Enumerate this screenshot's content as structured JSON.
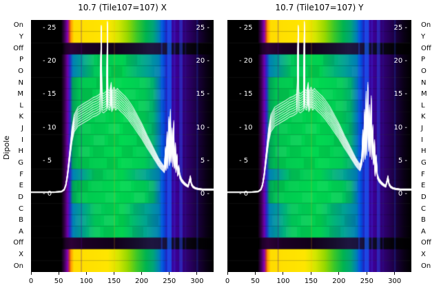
{
  "chart_data": {
    "type": "heatmap+line",
    "ylabel": "Dipole",
    "panels": [
      {
        "title": "10.7 (Tile107=107) X",
        "cluster_scale": 1.0
      },
      {
        "title": "10.7 (Tile107=107) Y",
        "cluster_scale": 1.35
      }
    ],
    "x_range": [
      0,
      330
    ],
    "x_ticks": [
      0,
      50,
      100,
      150,
      200,
      250,
      300
    ],
    "y_value_ticks": [
      25,
      20,
      15,
      10,
      5,
      0
    ],
    "row_labels": [
      "On",
      "Y",
      "Off",
      "P",
      "O",
      "N",
      "M",
      "L",
      "K",
      "J",
      "I",
      "H",
      "G",
      "F",
      "E",
      "D",
      "C",
      "B",
      "A",
      "Off",
      "X",
      "On"
    ],
    "row_types": [
      "hot",
      "hot",
      "off",
      "midB",
      "midB",
      "midA",
      "midA",
      "midA",
      "midA",
      "midA",
      "midA",
      "midA",
      "midA",
      "midB",
      "midA",
      "midA",
      "midB",
      "midB",
      "midB",
      "off",
      "hot",
      "hot"
    ],
    "palettes": {
      "hot": [
        [
          0,
          "#000000"
        ],
        [
          0.165,
          "#000000"
        ],
        [
          0.185,
          "#47005e"
        ],
        [
          0.2,
          "#8700b4"
        ],
        [
          0.21,
          "#c83c32"
        ],
        [
          0.218,
          "#ff9600"
        ],
        [
          0.235,
          "#ffdc00"
        ],
        [
          0.42,
          "#ffe600"
        ],
        [
          0.48,
          "#d2e600"
        ],
        [
          0.53,
          "#96d800"
        ],
        [
          0.58,
          "#3cc828"
        ],
        [
          0.63,
          "#00b450"
        ],
        [
          0.67,
          "#00a578"
        ],
        [
          0.7,
          "#0082b4"
        ],
        [
          0.725,
          "#0050dc"
        ],
        [
          0.75,
          "#2d14b4"
        ],
        [
          0.79,
          "#3c0096"
        ],
        [
          0.85,
          "#300073"
        ],
        [
          0.91,
          "#1b0040"
        ],
        [
          0.96,
          "#0a0016"
        ],
        [
          1,
          "#000000"
        ]
      ],
      "midA": [
        [
          0,
          "#000000"
        ],
        [
          0.165,
          "#000000"
        ],
        [
          0.185,
          "#3c0050"
        ],
        [
          0.2,
          "#6e00aa"
        ],
        [
          0.213,
          "#2828c8"
        ],
        [
          0.228,
          "#00a05a"
        ],
        [
          0.27,
          "#00c850"
        ],
        [
          0.5,
          "#00d850"
        ],
        [
          0.62,
          "#00cc55"
        ],
        [
          0.67,
          "#00b070"
        ],
        [
          0.7,
          "#0080b4"
        ],
        [
          0.725,
          "#0050dc"
        ],
        [
          0.75,
          "#2d14b4"
        ],
        [
          0.79,
          "#3c0096"
        ],
        [
          0.85,
          "#300073"
        ],
        [
          0.91,
          "#1b0040"
        ],
        [
          0.96,
          "#0a0016"
        ],
        [
          1,
          "#000000"
        ]
      ],
      "midB": [
        [
          0,
          "#000000"
        ],
        [
          0.165,
          "#000000"
        ],
        [
          0.185,
          "#3c0050"
        ],
        [
          0.2,
          "#6e00aa"
        ],
        [
          0.213,
          "#2828c8"
        ],
        [
          0.23,
          "#0082b4"
        ],
        [
          0.29,
          "#00a58c"
        ],
        [
          0.35,
          "#00c85a"
        ],
        [
          0.5,
          "#00d24e"
        ],
        [
          0.58,
          "#00b478"
        ],
        [
          0.64,
          "#00a096"
        ],
        [
          0.7,
          "#0080b4"
        ],
        [
          0.725,
          "#0050dc"
        ],
        [
          0.75,
          "#2d14b4"
        ],
        [
          0.79,
          "#3c0096"
        ],
        [
          0.85,
          "#300073"
        ],
        [
          0.91,
          "#1b0040"
        ],
        [
          0.96,
          "#0a0016"
        ],
        [
          1,
          "#000000"
        ]
      ],
      "off": [
        [
          0,
          "#000000"
        ],
        [
          0.17,
          "#000000"
        ],
        [
          0.19,
          "#1e0028"
        ],
        [
          0.22,
          "#2d0038"
        ],
        [
          0.3,
          "#1b0024"
        ],
        [
          0.45,
          "#12001a"
        ],
        [
          0.58,
          "#160e2d"
        ],
        [
          0.66,
          "#1e1640"
        ],
        [
          0.73,
          "#19123c"
        ],
        [
          0.8,
          "#0e0a20"
        ],
        [
          0.9,
          "#050208"
        ],
        [
          1,
          "#000000"
        ]
      ]
    },
    "stripes": [
      {
        "x": 90,
        "w": 2,
        "color": "#500096",
        "alpha": 0.3
      },
      {
        "x": 150,
        "w": 1.5,
        "color": "#ffb400",
        "alpha": 0.25
      },
      {
        "x": 235,
        "w": 2.5,
        "color": "#1e50ff",
        "alpha": 0.4
      },
      {
        "x": 246,
        "w": 8,
        "color": "#1464ff",
        "alpha": 0.65
      },
      {
        "x": 258,
        "w": 3,
        "color": "#3c28d2",
        "alpha": 0.4
      },
      {
        "x": 268,
        "w": 6,
        "color": "#2846e6",
        "alpha": 0.5
      },
      {
        "x": 278,
        "w": 2.5,
        "color": "#28148c",
        "alpha": 0.4
      },
      {
        "x": 299,
        "w": 3,
        "color": "#1e3cc8",
        "alpha": 0.3
      }
    ],
    "line": {
      "color": "#ffffff",
      "passes": 9,
      "points": [
        [
          0,
          0.4
        ],
        [
          40,
          0.4
        ],
        [
          55,
          0.5
        ],
        [
          60,
          0.8
        ],
        [
          63,
          1.5
        ],
        [
          66,
          3
        ],
        [
          70,
          6
        ],
        [
          74,
          9
        ],
        [
          78,
          10.8
        ],
        [
          85,
          11.8
        ],
        [
          95,
          12.3
        ],
        [
          105,
          12.8
        ],
        [
          112,
          13.2
        ],
        [
          118,
          13.4
        ],
        [
          122,
          13.6
        ],
        [
          125,
          13.8
        ],
        [
          126,
          19
        ],
        [
          127,
          25.2
        ],
        [
          128,
          14
        ],
        [
          131,
          13.8
        ],
        [
          134,
          14
        ],
        [
          137,
          14.2
        ],
        [
          138,
          25.8
        ],
        [
          139,
          14.5
        ],
        [
          142,
          14.2
        ],
        [
          145,
          15.5
        ],
        [
          146,
          14
        ],
        [
          150,
          14.8
        ],
        [
          153,
          14.2
        ],
        [
          156,
          14.6
        ],
        [
          160,
          14.2
        ],
        [
          165,
          13.8
        ],
        [
          170,
          13.4
        ],
        [
          175,
          12.9
        ],
        [
          180,
          12.3
        ],
        [
          185,
          11.7
        ],
        [
          190,
          11
        ],
        [
          195,
          10.3
        ],
        [
          200,
          9.6
        ],
        [
          205,
          8.8
        ],
        [
          210,
          8
        ],
        [
          214,
          7.4
        ],
        [
          218,
          6.8
        ],
        [
          222,
          6.2
        ],
        [
          226,
          5.6
        ],
        [
          230,
          5
        ],
        [
          234,
          4.5
        ],
        [
          238,
          4.1
        ],
        [
          241,
          3.8
        ],
        [
          243,
          6.5
        ],
        [
          244,
          4.2
        ],
        [
          246,
          8.5
        ],
        [
          247,
          4.5
        ],
        [
          249,
          10.5
        ],
        [
          250,
          5
        ],
        [
          252,
          11.5
        ],
        [
          253,
          5.5
        ],
        [
          255,
          9
        ],
        [
          256,
          4.8
        ],
        [
          258,
          10
        ],
        [
          259,
          4.5
        ],
        [
          261,
          7
        ],
        [
          262,
          3.8
        ],
        [
          264,
          5.5
        ],
        [
          265,
          3.2
        ],
        [
          267,
          4
        ],
        [
          269,
          2.8
        ],
        [
          272,
          2.2
        ],
        [
          276,
          1.8
        ],
        [
          280,
          1.5
        ],
        [
          284,
          1.3
        ],
        [
          288,
          2.6
        ],
        [
          290,
          1.6
        ],
        [
          293,
          1.2
        ],
        [
          297,
          1
        ],
        [
          302,
          0.9
        ],
        [
          310,
          0.8
        ],
        [
          320,
          0.8
        ],
        [
          330,
          0.8
        ]
      ]
    }
  }
}
